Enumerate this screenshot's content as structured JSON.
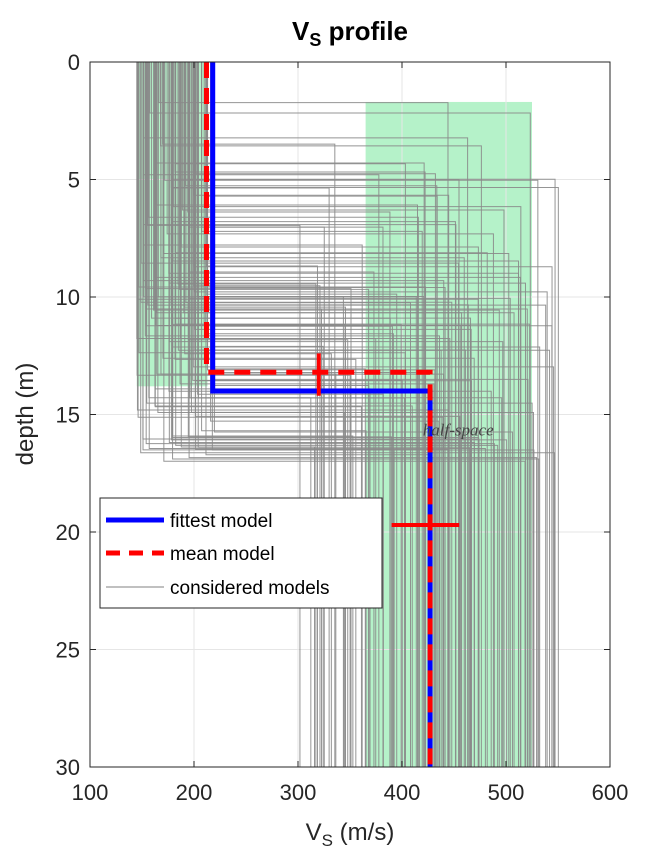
{
  "chart_data": {
    "type": "line",
    "title": "V",
    "title_sub": "S",
    "title_rest": " profile",
    "xlabel": "V",
    "xlabel_sub": "S",
    "xlabel_rest": " (m/s)",
    "ylabel": "depth (m)",
    "xlim": [
      100,
      600
    ],
    "ylim": [
      0,
      30
    ],
    "y_reversed": true,
    "grid": true,
    "x_ticks": [
      "100",
      "200",
      "300",
      "400",
      "500",
      "600"
    ],
    "y_ticks": [
      "0",
      "5",
      "10",
      "15",
      "20",
      "25",
      "30"
    ],
    "legend_position": "lower-left",
    "annotation": "half-space",
    "series": [
      {
        "name": "fittest model",
        "color": "#0000ff",
        "style": "solid",
        "x": [
          218,
          218,
          427,
          427
        ],
        "y": [
          0,
          14,
          14,
          30
        ]
      },
      {
        "name": "mean model",
        "color": "#ff0000",
        "style": "dashed",
        "x": [
          212,
          212,
          427,
          427
        ],
        "y": [
          0,
          13.2,
          13.2,
          30
        ]
      },
      {
        "name": "considered models",
        "color": "#808080",
        "style": "solid"
      }
    ],
    "error_bars": [
      {
        "orientation": "vertical",
        "x": 320,
        "y_range": [
          12.4,
          14.2
        ]
      },
      {
        "orientation": "horizontal",
        "y": 19.7,
        "x_range": [
          390,
          455
        ]
      }
    ],
    "search_ranges": [
      {
        "color": "#a8f0c0",
        "x_range": [
          145,
          213
        ],
        "y_range": [
          0,
          13.8
        ]
      },
      {
        "color": "#a8f0c0",
        "x_range": [
          365,
          525
        ],
        "y_range": [
          1.7,
          30
        ]
      }
    ]
  }
}
